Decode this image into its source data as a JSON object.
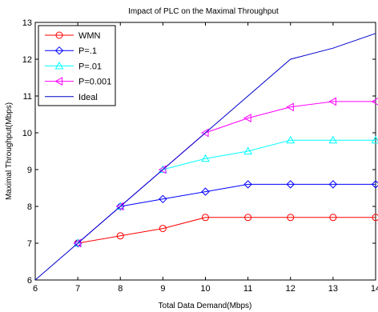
{
  "chart_data": {
    "type": "line",
    "title": "Impact of PLC on the Maximal Throughput",
    "xlabel": "Total Data Demand(Mbps)",
    "ylabel": "Maximal Throughput(Mbps)",
    "xlim": [
      6,
      14
    ],
    "ylim": [
      6,
      13
    ],
    "xticks": [
      6,
      7,
      8,
      9,
      10,
      11,
      12,
      13,
      14
    ],
    "yticks": [
      6,
      7,
      8,
      9,
      10,
      11,
      12,
      13
    ],
    "grid": false,
    "legend_position": "top-left",
    "series": [
      {
        "name": "WMN",
        "color": "#ff0000",
        "marker": "circle",
        "x": [
          7,
          8,
          9,
          10,
          11,
          12,
          13,
          14
        ],
        "y": [
          7.0,
          7.2,
          7.4,
          7.7,
          7.7,
          7.7,
          7.7,
          7.7
        ]
      },
      {
        "name": "P=.1",
        "color": "#0000ff",
        "marker": "diamond",
        "x": [
          7,
          8,
          9,
          10,
          11,
          12,
          13,
          14
        ],
        "y": [
          7.0,
          8.0,
          8.2,
          8.4,
          8.6,
          8.6,
          8.6,
          8.6
        ]
      },
      {
        "name": "P=.01",
        "color": "#00ffff",
        "marker": "triangle-up",
        "x": [
          7,
          8,
          9,
          10,
          11,
          12,
          13,
          14
        ],
        "y": [
          7.0,
          8.0,
          9.0,
          9.3,
          9.5,
          9.8,
          9.8,
          9.8
        ]
      },
      {
        "name": "P=0.001",
        "color": "#ff00ff",
        "marker": "triangle-left",
        "x": [
          7,
          8,
          9,
          10,
          11,
          12,
          13,
          14
        ],
        "y": [
          7.0,
          8.0,
          9.0,
          10.0,
          10.4,
          10.7,
          10.85,
          10.85
        ]
      },
      {
        "name": "Ideal",
        "color": "#0000cc",
        "marker": "none",
        "x": [
          6,
          7,
          8,
          9,
          10,
          11,
          12,
          13,
          14
        ],
        "y": [
          6,
          7,
          8,
          9,
          10,
          11,
          12,
          12.3,
          12.7
        ]
      }
    ]
  }
}
